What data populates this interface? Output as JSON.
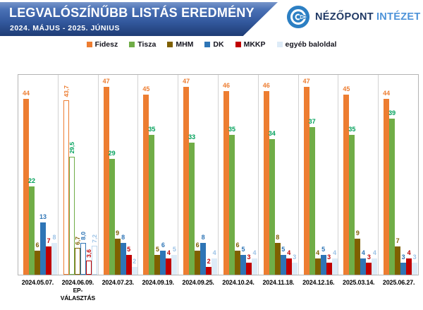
{
  "header": {
    "title": "LEGVALÓSZÍNŰBB LISTÁS EREDMÉNY",
    "subtitle": "2024. MÁJUS - 2025. JÚNIUS"
  },
  "logo": {
    "name": "NÉZŐPONT",
    "suffix": "INTÉZET",
    "icon": "nezopont-eye-icon",
    "icon_color": "#2C7FC3",
    "name_color": "#1F3864",
    "suffix_color": "#4D93D9"
  },
  "chart_data": {
    "type": "bar",
    "title": "LEGVALÓSZÍNŰBB LISTÁS EREDMÉNY",
    "subtitle": "2024. MÁJUS - 2025. JÚNIUS",
    "ylim": [
      0,
      50
    ],
    "grid": false,
    "legend_position": "top-center",
    "value_labels": "above bars, colored per party; 2024.06.09. labels rotated vertical with comma decimals",
    "special_group_note": "2024.06.09. EP-VÁLASZTÁS bars are hollow (outline only) showing actual election results",
    "parties": [
      {
        "name": "Fidesz",
        "color": "#ED7D31",
        "label_color": "#ED7D31"
      },
      {
        "name": "Tisza",
        "color": "#70AD47",
        "label_color": "#00A05A"
      },
      {
        "name": "MHM",
        "color": "#7F6000",
        "label_color": "#7F6000"
      },
      {
        "name": "DK",
        "color": "#2E75B6",
        "label_color": "#2E75B6"
      },
      {
        "name": "MKKP",
        "color": "#C00000",
        "label_color": "#C00000"
      },
      {
        "name": "egyéb baloldal",
        "color": "#DDEBF7",
        "label_color": "#9DC3E6"
      }
    ],
    "categories": [
      "2024.05.07.",
      "2024.06.09.",
      "2024.07.23.",
      "2024.09.19.",
      "2024.09.25.",
      "2024.10.24.",
      "2024.11.18.",
      "2024.12.16.",
      "2025.03.14.",
      "2025.06.27."
    ],
    "series": [
      {
        "name": "Fidesz",
        "values": [
          44,
          43.7,
          47,
          45,
          47,
          46,
          46,
          47,
          45,
          44
        ]
      },
      {
        "name": "Tisza",
        "values": [
          22,
          29.5,
          29,
          35,
          33,
          35,
          34,
          37,
          35,
          39
        ]
      },
      {
        "name": "MHM",
        "values": [
          6,
          6.7,
          9,
          5,
          6,
          6,
          8,
          4,
          9,
          7
        ]
      },
      {
        "name": "DK",
        "values": [
          13,
          8.0,
          8,
          6,
          8,
          5,
          5,
          5,
          4,
          3
        ]
      },
      {
        "name": "MKKP",
        "values": [
          7,
          3.6,
          5,
          4,
          2,
          3,
          4,
          3,
          3,
          4
        ]
      },
      {
        "name": "egyéb baloldal",
        "values": [
          8,
          7.2,
          2,
          5,
          4,
          4,
          3,
          4,
          4,
          3
        ]
      }
    ],
    "groups": [
      {
        "date": "2024.05.07.",
        "sublabel": "",
        "outline": false,
        "rotated_labels": false,
        "values": [
          44,
          22,
          6,
          13,
          7,
          8
        ],
        "labels": [
          "44",
          "22",
          "6",
          "13",
          "7",
          "8"
        ]
      },
      {
        "date": "2024.06.09.",
        "sublabel": "EP-VÁLASZTÁS",
        "outline": true,
        "rotated_labels": true,
        "values": [
          43.7,
          29.5,
          6.7,
          8.0,
          3.6,
          7.2
        ],
        "labels": [
          "43,7",
          "29,5",
          "6,7",
          "8,0",
          "3,6",
          "7,2"
        ]
      },
      {
        "date": "2024.07.23.",
        "sublabel": "",
        "outline": false,
        "rotated_labels": false,
        "values": [
          47,
          29,
          9,
          8,
          5,
          2
        ],
        "labels": [
          "47",
          "29",
          "9",
          "8",
          "5",
          "2"
        ]
      },
      {
        "date": "2024.09.19.",
        "sublabel": "",
        "outline": false,
        "rotated_labels": false,
        "values": [
          45,
          35,
          5,
          6,
          4,
          5
        ],
        "labels": [
          "45",
          "35",
          "5",
          "6",
          "4",
          "5"
        ]
      },
      {
        "date": "2024.09.25.",
        "sublabel": "",
        "outline": false,
        "rotated_labels": false,
        "values": [
          47,
          33,
          6,
          8,
          2,
          4
        ],
        "labels": [
          "47",
          "33",
          "6",
          "8",
          "2",
          "4"
        ]
      },
      {
        "date": "2024.10.24.",
        "sublabel": "",
        "outline": false,
        "rotated_labels": false,
        "values": [
          46,
          35,
          6,
          5,
          3,
          4
        ],
        "labels": [
          "46",
          "35",
          "6",
          "5",
          "3",
          "4"
        ]
      },
      {
        "date": "2024.11.18.",
        "sublabel": "",
        "outline": false,
        "rotated_labels": false,
        "values": [
          46,
          34,
          8,
          5,
          4,
          3
        ],
        "labels": [
          "46",
          "34",
          "8",
          "5",
          "4",
          "3"
        ]
      },
      {
        "date": "2024.12.16.",
        "sublabel": "",
        "outline": false,
        "rotated_labels": false,
        "values": [
          47,
          37,
          4,
          5,
          3,
          4
        ],
        "labels": [
          "47",
          "37",
          "4",
          "5",
          "3",
          "4"
        ]
      },
      {
        "date": "2025.03.14.",
        "sublabel": "",
        "outline": false,
        "rotated_labels": false,
        "values": [
          45,
          35,
          9,
          4,
          3,
          4
        ],
        "labels": [
          "45",
          "35",
          "9",
          "4",
          "3",
          "4"
        ]
      },
      {
        "date": "2025.06.27.",
        "sublabel": "",
        "outline": false,
        "rotated_labels": false,
        "values": [
          44,
          39,
          7,
          3,
          4,
          3
        ],
        "labels": [
          "44",
          "39",
          "7",
          "3",
          "4",
          "3"
        ]
      }
    ]
  }
}
